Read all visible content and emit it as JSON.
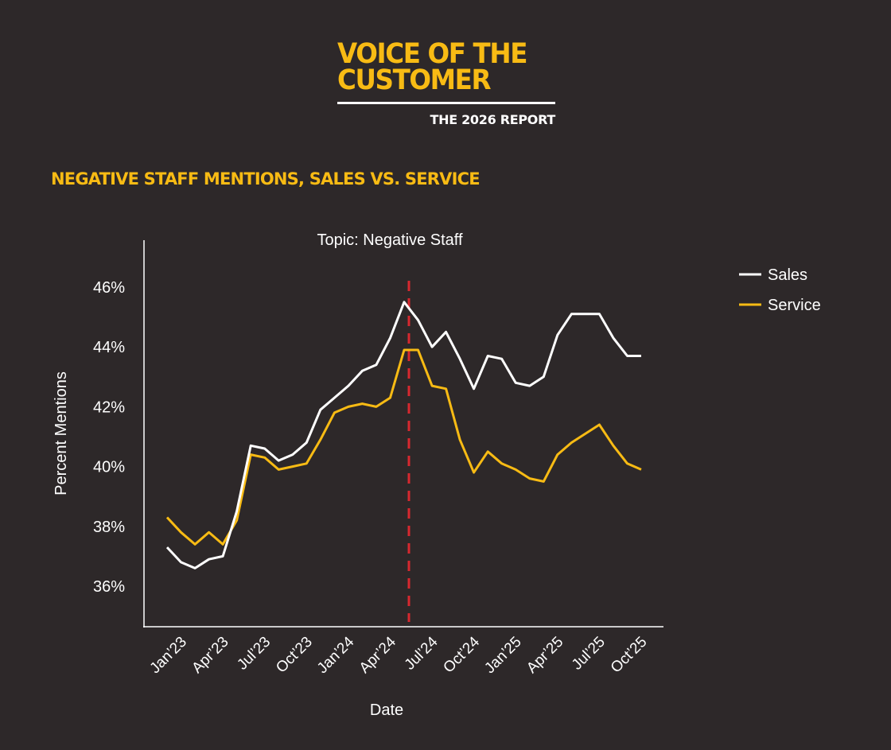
{
  "header": {
    "brand_line1": "VOICE OF THE",
    "brand_line2": "CUSTOMER",
    "brand_sub": "THE 2026 REPORT",
    "section_title": "NEGATIVE STAFF MENTIONS, SALES VS. SERVICE"
  },
  "chart_data": {
    "type": "line",
    "title": "Topic: Negative Staff",
    "xlabel": "Date",
    "ylabel": "Percent Mentions",
    "ylim": [
      34.8,
      47.6
    ],
    "yticks": [
      36,
      38,
      40,
      42,
      44,
      46
    ],
    "ytick_labels": [
      "36%",
      "38%",
      "40%",
      "42%",
      "44%",
      "46%"
    ],
    "xtick_dates": [
      "2023-01",
      "2023-04",
      "2023-07",
      "2023-10",
      "2024-01",
      "2024-04",
      "2024-07",
      "2024-10",
      "2025-01",
      "2025-04",
      "2025-07",
      "2025-10"
    ],
    "xtick_labels": [
      "Jan’23",
      "Apr’23",
      "Jul’23",
      "Oct’23",
      "Jan’24",
      "Apr’24",
      "Jul’24",
      "Oct’24",
      "Jan’25",
      "Apr’25",
      "Jul’25",
      "Oct’25"
    ],
    "x": [
      "2022-12",
      "2023-01",
      "2023-02",
      "2023-03",
      "2023-04",
      "2023-05",
      "2023-06",
      "2023-07",
      "2023-08",
      "2023-09",
      "2023-10",
      "2023-11",
      "2023-12",
      "2024-01",
      "2024-02",
      "2024-03",
      "2024-04",
      "2024-05",
      "2024-06",
      "2024-07",
      "2024-08",
      "2024-09",
      "2024-10",
      "2024-11",
      "2024-12",
      "2025-01",
      "2025-02",
      "2025-03",
      "2025-04",
      "2025-05",
      "2025-06",
      "2025-07",
      "2025-08",
      "2025-09",
      "2025-10"
    ],
    "series": [
      {
        "name": "Sales",
        "color": "#ffffff",
        "values": [
          37.3,
          36.8,
          36.6,
          36.9,
          37.0,
          38.5,
          40.7,
          40.6,
          40.2,
          40.4,
          40.8,
          41.9,
          42.3,
          42.7,
          43.2,
          43.4,
          44.3,
          45.5,
          44.9,
          44.0,
          44.5,
          43.6,
          42.6,
          43.7,
          43.6,
          42.8,
          42.7,
          43.0,
          44.4,
          45.1,
          45.1,
          45.1,
          44.3,
          43.7,
          43.7
        ]
      },
      {
        "name": "Service",
        "color": "#f8bb14",
        "values": [
          38.3,
          37.8,
          37.4,
          37.8,
          37.4,
          38.2,
          40.4,
          40.3,
          39.9,
          40.0,
          40.1,
          40.9,
          41.8,
          42.0,
          42.1,
          42.0,
          42.3,
          43.9,
          43.9,
          42.7,
          42.6,
          40.9,
          39.8,
          40.5,
          40.1,
          39.9,
          39.6,
          39.5,
          40.4,
          40.8,
          41.1,
          41.4,
          40.7,
          40.1,
          39.9
        ]
      }
    ],
    "reference_line": {
      "x": "2024-05",
      "color": "#d7282f",
      "style": "dashed"
    },
    "grid": false,
    "legend": "right"
  }
}
